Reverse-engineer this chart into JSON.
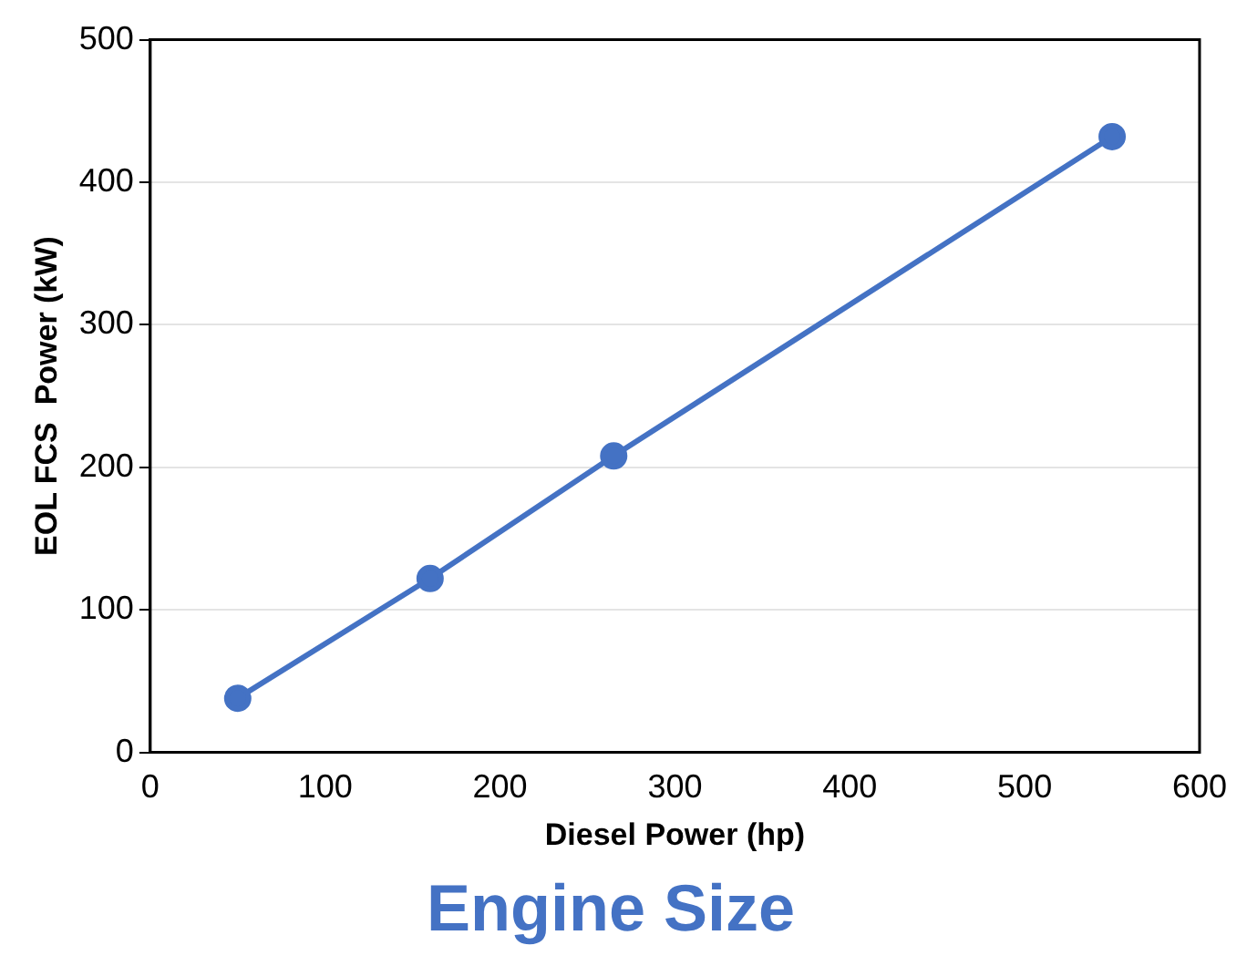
{
  "chart_data": {
    "type": "line",
    "title": "Engine Size",
    "xlabel": "Diesel Power (hp)",
    "ylabel": "EOL FCS  Power (kW)",
    "x": [
      50,
      160,
      265,
      550
    ],
    "series": [
      {
        "color": "#4472c4",
        "values": [
          38,
          122,
          208,
          432
        ]
      }
    ],
    "xlim": [
      0,
      600
    ],
    "xticks": [
      0,
      100,
      200,
      300,
      400,
      500,
      600
    ],
    "ylim": [
      0,
      500
    ],
    "yticks": [
      0,
      100,
      200,
      300,
      400,
      500
    ],
    "grid": "y",
    "legend": false,
    "marker": "circle",
    "line_style": "solid"
  }
}
